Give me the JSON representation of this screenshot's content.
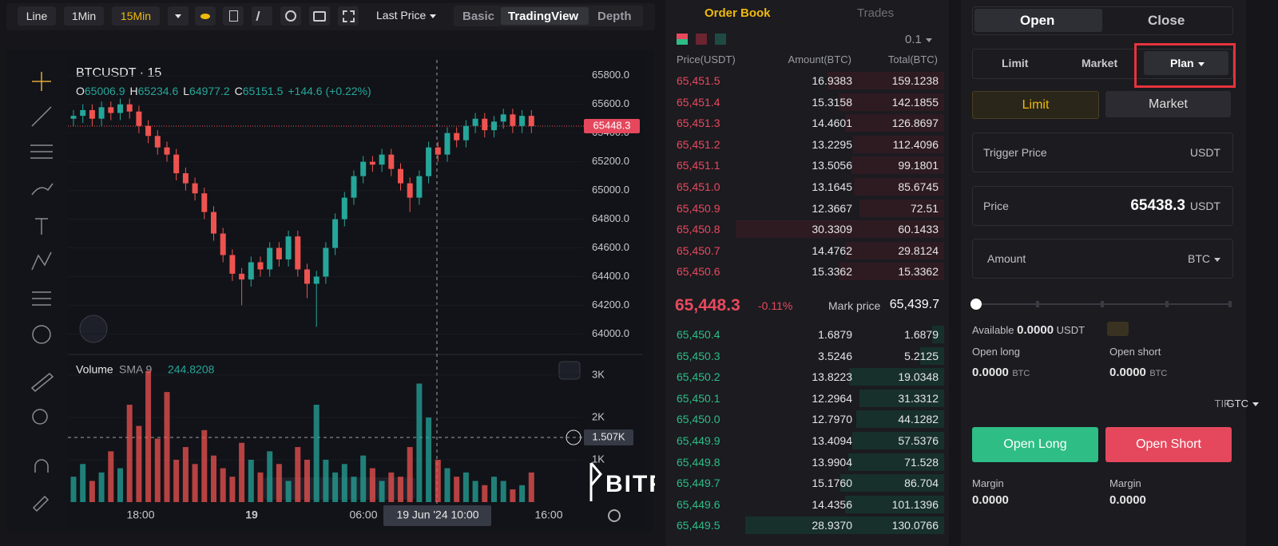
{
  "toolbar": {
    "intervals": [
      "Line",
      "1Min",
      "15Min"
    ],
    "price_type": "Last Price",
    "views": [
      "Basic",
      "TradingView",
      "Depth"
    ]
  },
  "chart_data": {
    "type": "candlestick",
    "title": "BTCUSDT · 15",
    "ohlc_legend": [
      "O",
      "65006.9",
      "H",
      "65234.6",
      "L",
      "64977.2",
      "C",
      "65151.5",
      "+144.6 (+0.22%)"
    ],
    "open": [
      65500,
      65520,
      65560,
      65500,
      65580,
      65540,
      65600,
      65550,
      65450,
      65380,
      65300,
      65250,
      65120,
      65050,
      64980,
      64850,
      64700,
      64550,
      64420,
      64380,
      64500,
      64450,
      64600,
      64520,
      64680,
      64450,
      64350,
      64400,
      64600,
      64800,
      64950,
      65100,
      65200,
      65180,
      65250,
      65150,
      65050,
      64950,
      65100,
      65300,
      65250,
      65400,
      65350,
      65450,
      65500,
      65420,
      65480,
      65530,
      65450,
      65520
    ],
    "high": [
      65560,
      65600,
      65600,
      65620,
      65620,
      65640,
      65640,
      65590,
      65490,
      65420,
      65340,
      65290,
      65160,
      65090,
      65020,
      64890,
      64740,
      64590,
      64460,
      64540,
      64540,
      64640,
      64640,
      64720,
      64720,
      64490,
      64440,
      64640,
      64840,
      64990,
      65140,
      65240,
      65240,
      65290,
      65290,
      65190,
      65090,
      65140,
      65340,
      65340,
      65440,
      65440,
      65490,
      65540,
      65540,
      65520,
      65570,
      65570,
      65560,
      65560
    ],
    "low": [
      65450,
      65470,
      65450,
      65450,
      65490,
      65490,
      65500,
      65400,
      65330,
      65250,
      65200,
      65070,
      65000,
      64930,
      64800,
      64650,
      64500,
      64370,
      64200,
      64330,
      64400,
      64400,
      64470,
      64470,
      64400,
      64250,
      64050,
      64350,
      64550,
      64750,
      64900,
      65050,
      65130,
      65130,
      65100,
      65000,
      64850,
      64900,
      65050,
      65200,
      65200,
      65300,
      65300,
      65400,
      65370,
      65370,
      65430,
      65400,
      65400,
      65400
    ],
    "close": [
      65520,
      65560,
      65500,
      65580,
      65540,
      65600,
      65550,
      65450,
      65380,
      65300,
      65250,
      65120,
      65050,
      64980,
      64850,
      64700,
      64550,
      64420,
      64380,
      64500,
      64450,
      64600,
      64520,
      64680,
      64450,
      64350,
      64400,
      64600,
      64800,
      64950,
      65100,
      65200,
      65180,
      65250,
      65150,
      65050,
      64950,
      65100,
      65300,
      65250,
      65400,
      65350,
      65450,
      65500,
      65420,
      65480,
      65530,
      65450,
      65520,
      65448.3
    ],
    "up_color": "#26a69a",
    "down_color": "#ef5350",
    "ylim": [
      63880,
      65910
    ],
    "yticks": [
      {
        "value": 64000,
        "label": "64000.0"
      },
      {
        "value": 64200,
        "label": "64200.0"
      },
      {
        "value": 64400,
        "label": "64400.0"
      },
      {
        "value": 64600,
        "label": "64600.0"
      },
      {
        "value": 64800,
        "label": "64800.0"
      },
      {
        "value": 65000,
        "label": "65000.0"
      },
      {
        "value": 65200,
        "label": "65200.0"
      },
      {
        "value": 65400,
        "label": "65400.0"
      },
      {
        "value": 65600,
        "label": "65600.0"
      },
      {
        "value": 65800,
        "label": "65800.0"
      }
    ],
    "last_price": 65448.3,
    "x_labels": [
      "18:00",
      "19",
      "06:00",
      "16:00"
    ],
    "crosshair_x_label": "19 Jun '24  10:00",
    "volume": {
      "title": "Volume",
      "indicator": "SMA 9",
      "indicator_value": "244.8208",
      "values": [
        600,
        900,
        500,
        700,
        1200,
        800,
        2300,
        1800,
        3100,
        1500,
        2600,
        1000,
        1300,
        900,
        1700,
        1100,
        800,
        600,
        1400,
        1000,
        700,
        1200,
        900,
        500,
        1300,
        1000,
        2300,
        1000,
        700,
        900,
        600,
        1100,
        800,
        500,
        700,
        600,
        1300,
        2800,
        2000,
        1000,
        800,
        600,
        700,
        500,
        400,
        600,
        500,
        300,
        400,
        700
      ],
      "ylim": [
        0,
        3300
      ],
      "yticks": [
        {
          "value": 1000,
          "label": "1K"
        },
        {
          "value": 2000,
          "label": "2K"
        },
        {
          "value": 3000,
          "label": "3K"
        }
      ],
      "crosshair_label": "1.507K"
    },
    "watermark": "BITFA"
  },
  "order_book": {
    "tabs": [
      "Order Book",
      "Trades"
    ],
    "precision": "0.1",
    "columns": [
      "Price(USDT)",
      "Amount(BTC)",
      "Total(BTC)"
    ],
    "asks": [
      [
        "65,451.5",
        "16.9383",
        "159.1238"
      ],
      [
        "65,451.4",
        "15.3158",
        "142.1855"
      ],
      [
        "65,451.3",
        "14.4601",
        "126.8697"
      ],
      [
        "65,451.2",
        "13.2295",
        "112.4096"
      ],
      [
        "65,451.1",
        "13.5056",
        "99.1801"
      ],
      [
        "65,451.0",
        "13.1645",
        "85.6745"
      ],
      [
        "65,450.9",
        "12.3667",
        "72.51"
      ],
      [
        "65,450.8",
        "30.3309",
        "60.1433"
      ],
      [
        "65,450.7",
        "14.4762",
        "29.8124"
      ],
      [
        "65,450.6",
        "15.3362",
        "15.3362"
      ]
    ],
    "last_price": "65,448.3",
    "change": "-0.11%",
    "mark_label": "Mark price",
    "mark_price": "65,439.7",
    "bids": [
      [
        "65,450.4",
        "1.6879",
        "1.6879"
      ],
      [
        "65,450.3",
        "3.5246",
        "5.2125"
      ],
      [
        "65,450.2",
        "13.8223",
        "19.0348"
      ],
      [
        "65,450.1",
        "12.2964",
        "31.3312"
      ],
      [
        "65,450.0",
        "12.7970",
        "44.1282"
      ],
      [
        "65,449.9",
        "13.4094",
        "57.5376"
      ],
      [
        "65,449.8",
        "13.9904",
        "71.528"
      ],
      [
        "65,449.7",
        "15.1760",
        "86.704"
      ],
      [
        "65,449.6",
        "14.4356",
        "101.1396"
      ],
      [
        "65,449.5",
        "28.9370",
        "130.0766"
      ]
    ]
  },
  "order_form": {
    "tabs": [
      "Open",
      "Close"
    ],
    "modes": [
      "Limit",
      "Market",
      "Plan"
    ],
    "plan_modes": [
      "Limit",
      "Market"
    ],
    "trigger_label": "Trigger Price",
    "trigger_unit": "USDT",
    "price_label": "Price",
    "price": "65438.3",
    "price_unit": "USDT",
    "amount_label": "Amount",
    "amount_unit": "BTC",
    "available_label": "Available",
    "available": "0.0000",
    "available_unit": "USDT",
    "open_long_label": "Open long",
    "open_long": "0.0000",
    "open_long_unit": "BTC",
    "open_short_label": "Open short",
    "open_short": "0.0000",
    "open_short_unit": "BTC",
    "tif_label": "TIF",
    "tif": "GTC",
    "buttons": [
      "Open Long",
      "Open Short"
    ],
    "margin_labels": [
      "Margin",
      "Margin"
    ],
    "margins": [
      "0.0000",
      "0.0000"
    ]
  }
}
